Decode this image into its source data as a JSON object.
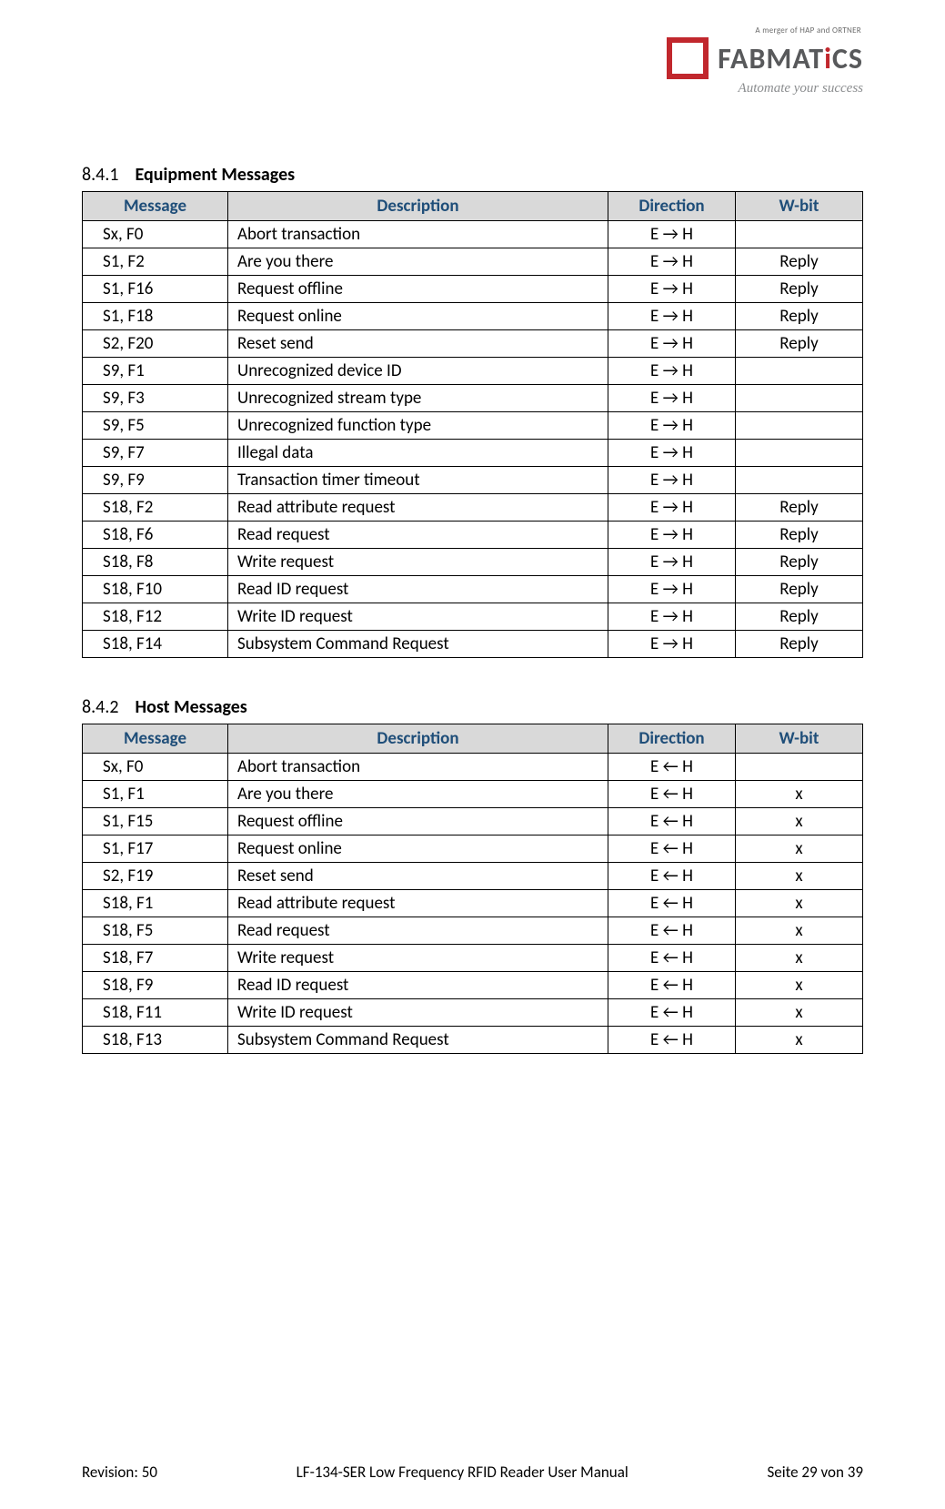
{
  "header": {
    "merger_line": "A merger of HAP and ORTNER",
    "brand_prefix": "FABMAT",
    "brand_i": "i",
    "brand_suffix": "CS",
    "tagline": "Automate your success"
  },
  "sections": {
    "equipment": {
      "number": "8.4.1",
      "title": "Equipment Messages",
      "columns": [
        "Message",
        "Description",
        "Direction",
        "W-bit"
      ],
      "arrow": "→",
      "rows": [
        {
          "msg": "Sx, F0",
          "desc": "Abort transaction",
          "dir": "E → H",
          "wbit": ""
        },
        {
          "msg": "S1, F2",
          "desc": "Are you there",
          "dir": "E → H",
          "wbit": "Reply"
        },
        {
          "msg": "S1, F16",
          "desc": "Request offline",
          "dir": "E → H",
          "wbit": "Reply"
        },
        {
          "msg": "S1, F18",
          "desc": "Request online",
          "dir": "E → H",
          "wbit": "Reply"
        },
        {
          "msg": "S2, F20",
          "desc": "Reset send",
          "dir": "E → H",
          "wbit": "Reply"
        },
        {
          "msg": "S9, F1",
          "desc": "Unrecognized device ID",
          "dir": "E → H",
          "wbit": ""
        },
        {
          "msg": "S9, F3",
          "desc": "Unrecognized stream type",
          "dir": "E → H",
          "wbit": ""
        },
        {
          "msg": "S9, F5",
          "desc": "Unrecognized function type",
          "dir": "E → H",
          "wbit": ""
        },
        {
          "msg": "S9, F7",
          "desc": "Illegal data",
          "dir": "E → H",
          "wbit": ""
        },
        {
          "msg": "S9, F9",
          "desc": "Transaction timer timeout",
          "dir": "E → H",
          "wbit": ""
        },
        {
          "msg": "S18, F2",
          "desc": "Read attribute request",
          "dir": "E → H",
          "wbit": "Reply"
        },
        {
          "msg": "S18, F6",
          "desc": "Read request",
          "dir": "E → H",
          "wbit": "Reply"
        },
        {
          "msg": "S18, F8",
          "desc": "Write request",
          "dir": "E → H",
          "wbit": "Reply"
        },
        {
          "msg": "S18, F10",
          "desc": "Read ID request",
          "dir": "E → H",
          "wbit": "Reply"
        },
        {
          "msg": "S18, F12",
          "desc": "Write ID request",
          "dir": "E → H",
          "wbit": "Reply"
        },
        {
          "msg": "S18, F14",
          "desc": "Subsystem Command Request",
          "dir": "E → H",
          "wbit": "Reply"
        }
      ]
    },
    "host": {
      "number": "8.4.2",
      "title": "Host Messages",
      "columns": [
        "Message",
        "Description",
        "Direction",
        "W-bit"
      ],
      "arrow": "←",
      "rows": [
        {
          "msg": "Sx, F0",
          "desc": "Abort transaction",
          "dir": "E ← H",
          "wbit": ""
        },
        {
          "msg": "S1, F1",
          "desc": "Are you there",
          "dir": "E ← H",
          "wbit": "x"
        },
        {
          "msg": "S1, F15",
          "desc": "Request offline",
          "dir": "E ← H",
          "wbit": "x"
        },
        {
          "msg": "S1, F17",
          "desc": "Request online",
          "dir": "E ← H",
          "wbit": "x"
        },
        {
          "msg": "S2, F19",
          "desc": "Reset send",
          "dir": "E ← H",
          "wbit": "x"
        },
        {
          "msg": "S18, F1",
          "desc": "Read attribute request",
          "dir": "E ← H",
          "wbit": "x"
        },
        {
          "msg": "S18, F5",
          "desc": "Read request",
          "dir": "E ← H",
          "wbit": "x"
        },
        {
          "msg": "S18, F7",
          "desc": "Write request",
          "dir": "E ← H",
          "wbit": "x"
        },
        {
          "msg": "S18, F9",
          "desc": "Read ID request",
          "dir": "E ← H",
          "wbit": "x"
        },
        {
          "msg": "S18, F11",
          "desc": "Write ID request",
          "dir": "E ← H",
          "wbit": "x"
        },
        {
          "msg": "S18, F13",
          "desc": "Subsystem Command Request",
          "dir": "E ← H",
          "wbit": "x"
        }
      ]
    }
  },
  "footer": {
    "revision": "Revision: 50",
    "doc_title": "LF-134-SER Low Frequency RFID Reader User Manual",
    "page": "Seite 29 von 39"
  },
  "colors": {
    "header_bg": "#d9d9d9",
    "header_text": "#1f4e79",
    "border": "#000000",
    "brand_red": "#c1272d",
    "brand_gray": "#58595b",
    "tagline_gray": "#8a8c8e"
  }
}
